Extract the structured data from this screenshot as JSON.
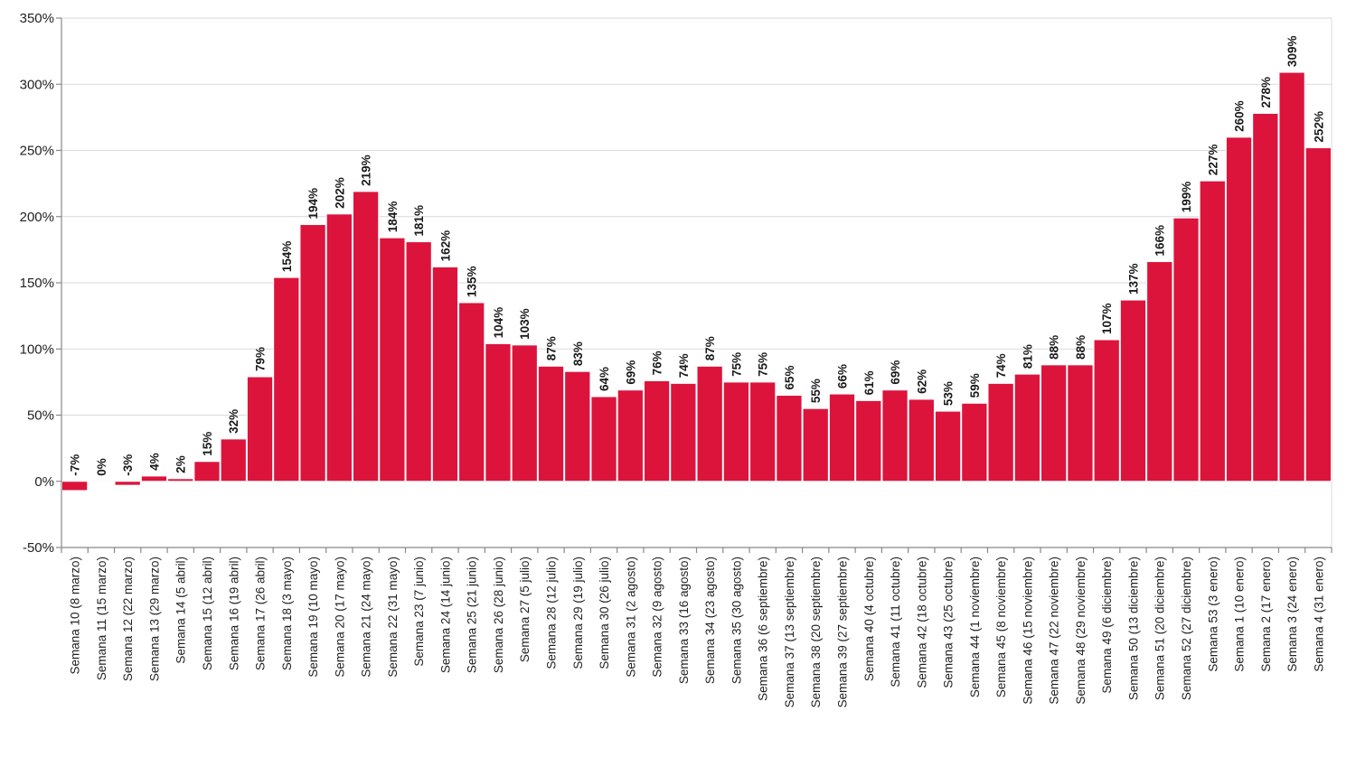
{
  "chart_data": {
    "type": "bar",
    "title": "",
    "xlabel": "",
    "ylabel": "",
    "ylim": [
      -50,
      350
    ],
    "yticks": [
      -50,
      0,
      50,
      100,
      150,
      200,
      250,
      300,
      350
    ],
    "ytick_labels": [
      "-50%",
      "0%",
      "50%",
      "100%",
      "150%",
      "200%",
      "250%",
      "300%",
      "350%"
    ],
    "grid": true,
    "legend": null,
    "bar_color": "#DC143C",
    "categories": [
      "Semana 10 (8 marzo)",
      "Semana 11 (15 marzo)",
      "Semana 12 (22 marzo)",
      "Semana 13 (29 marzo)",
      "Semana 14 (5 abril)",
      "Semana 15 (12 abril)",
      "Semana 16 (19 abril)",
      "Semana 17 (26 abril)",
      "Semana 18 (3 mayo)",
      "Semana 19 (10 mayo)",
      "Semana 20 (17 mayo)",
      "Semana 21 (24 mayo)",
      "Semana 22 (31 mayo)",
      "Semana 23 (7 junio)",
      "Semana 24 (14 junio)",
      "Semana 25 (21 junio)",
      "Semana 26 (28 junio)",
      "Semana 27 (5 julio)",
      "Semana 28 (12 julio)",
      "Semana 29 (19 julio)",
      "Semana 30 (26 julio)",
      "Semana 31 (2 agosto)",
      "Semana 32 (9 agosto)",
      "Semana 33 (16 agosto)",
      "Semana 34 (23 agosto)",
      "Semana 35 (30 agosto)",
      "Semana 36 (6 septiembre)",
      "Semana 37 (13 septiembre)",
      "Semana 38 (20 septiembre)",
      "Semana 39 (27 septiembre)",
      "Semana 40 (4 octubre)",
      "Semana 41 (11 octubre)",
      "Semana 42 (18 octubre)",
      "Semana 43 (25 octubre)",
      "Semana 44 (1 noviembre)",
      "Semana 45 (8 noviembre)",
      "Semana 46 (15 noviembre)",
      "Semana 47 (22 noviembre)",
      "Semana 48 (29 noviembre)",
      "Semana 49 (6 diciembre)",
      "Semana 50 (13 diciembre)",
      "Semana 51 (20 diciembre)",
      "Semana 52 (27 diciembre)",
      "Semana 53 (3 enero)",
      "Semana 1 (10 enero)",
      "Semana 2 (17 enero)",
      "Semana 3 (24 enero)",
      "Semana 4 (31 enero)"
    ],
    "values": [
      -7,
      0,
      -3,
      4,
      2,
      15,
      32,
      79,
      154,
      194,
      202,
      219,
      184,
      181,
      162,
      135,
      104,
      103,
      87,
      83,
      64,
      69,
      76,
      74,
      87,
      75,
      75,
      65,
      55,
      66,
      61,
      69,
      62,
      53,
      59,
      74,
      81,
      88,
      88,
      107,
      137,
      166,
      199,
      227,
      260,
      278,
      309,
      252
    ],
    "value_labels": [
      "-7%",
      "0%",
      "-3%",
      "4%",
      "2%",
      "15%",
      "32%",
      "79%",
      "154%",
      "194%",
      "202%",
      "219%",
      "184%",
      "181%",
      "162%",
      "135%",
      "104%",
      "103%",
      "87%",
      "83%",
      "64%",
      "69%",
      "76%",
      "74%",
      "87%",
      "75%",
      "75%",
      "65%",
      "55%",
      "66%",
      "61%",
      "69%",
      "62%",
      "53%",
      "59%",
      "74%",
      "81%",
      "88%",
      "88%",
      "107%",
      "137%",
      "166%",
      "199%",
      "227%",
      "260%",
      "278%",
      "309%",
      "252%"
    ]
  }
}
